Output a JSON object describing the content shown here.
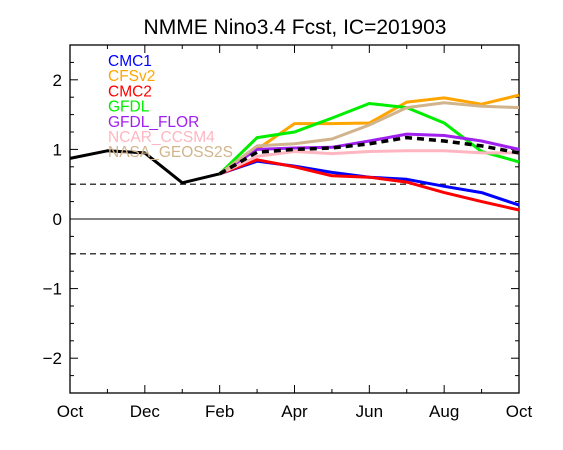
{
  "chart_data": {
    "type": "line",
    "title": "NMME Nino3.4 Fcst, IC=201903",
    "xlabel": "",
    "ylabel": "",
    "x_tick_labels": [
      "Oct",
      "Dec",
      "Feb",
      "Apr",
      "Jun",
      "Aug",
      "Oct"
    ],
    "y_tick_labels": [
      "2",
      "1",
      "0",
      "−1",
      "−2"
    ],
    "y_ticks": [
      2,
      1,
      0,
      -1,
      -2
    ],
    "xlim": [
      0,
      12
    ],
    "ylim": [
      -2.5,
      2.5
    ],
    "reference_lines": [
      {
        "y": 0.5,
        "style": "dashed"
      },
      {
        "y": 0,
        "style": "solid"
      },
      {
        "y": -0.5,
        "style": "dashed"
      }
    ],
    "observed": {
      "x": [
        0,
        1,
        2,
        3,
        4
      ],
      "values": [
        0.87,
        0.98,
        0.95,
        0.52,
        0.65
      ],
      "color": "#000000"
    },
    "ensemble_mean": {
      "x": [
        4,
        5,
        6,
        7,
        8,
        9,
        10,
        11,
        12
      ],
      "values": [
        0.65,
        0.96,
        1.0,
        1.02,
        1.08,
        1.17,
        1.12,
        1.05,
        0.95
      ],
      "color": "#000000",
      "style": "dashed"
    },
    "series": [
      {
        "name": "CMC1",
        "color": "#0000ff",
        "x": [
          4,
          5,
          6,
          7,
          8,
          9,
          10,
          11,
          12
        ],
        "values": [
          0.65,
          0.83,
          0.76,
          0.67,
          0.6,
          0.57,
          0.47,
          0.38,
          0.2
        ]
      },
      {
        "name": "CFSv2",
        "color": "#ffa500",
        "x": [
          4,
          5,
          6,
          7,
          8,
          9,
          10,
          11,
          12
        ],
        "values": [
          0.65,
          1.0,
          1.37,
          1.37,
          1.38,
          1.68,
          1.74,
          1.65,
          1.78
        ]
      },
      {
        "name": "CMC2",
        "color": "#ff0000",
        "x": [
          4,
          5,
          6,
          7,
          8,
          9,
          10,
          11,
          12
        ],
        "values": [
          0.65,
          0.85,
          0.75,
          0.62,
          0.6,
          0.53,
          0.38,
          0.25,
          0.13
        ]
      },
      {
        "name": "GFDL",
        "color": "#00ee00",
        "x": [
          4,
          5,
          6,
          7,
          8,
          9,
          10,
          11,
          12
        ],
        "values": [
          0.65,
          1.17,
          1.25,
          1.45,
          1.66,
          1.6,
          1.38,
          0.97,
          0.82
        ]
      },
      {
        "name": "GFDL_FLOR",
        "color": "#a020f0",
        "x": [
          4,
          5,
          6,
          7,
          8,
          9,
          10,
          11,
          12
        ],
        "values": [
          0.65,
          1.0,
          1.02,
          1.03,
          1.12,
          1.22,
          1.2,
          1.12,
          1.0
        ]
      },
      {
        "name": "NCAR_CCSM4",
        "color": "#ffb6c1",
        "x": [
          4,
          5,
          6,
          7,
          8,
          9,
          10,
          11,
          12
        ],
        "values": [
          0.65,
          0.9,
          0.97,
          0.94,
          0.97,
          0.98,
          0.98,
          0.95,
          0.95
        ]
      },
      {
        "name": "NASA_GEOSS2S",
        "color": "#d2b48c",
        "x": [
          4,
          5,
          6,
          7,
          8,
          9,
          10,
          11,
          12
        ],
        "values": [
          0.65,
          1.05,
          1.08,
          1.15,
          1.35,
          1.6,
          1.67,
          1.62,
          1.6
        ]
      }
    ],
    "legend_placement": "top-left",
    "grid": false
  }
}
